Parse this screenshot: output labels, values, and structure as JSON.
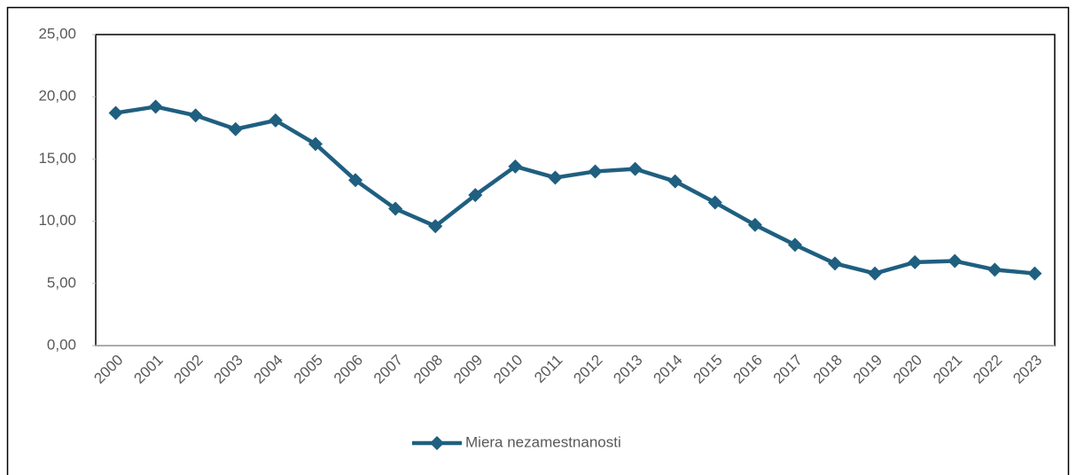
{
  "chart_data": {
    "type": "line",
    "categories": [
      "2000",
      "2001",
      "2002",
      "2003",
      "2004",
      "2005",
      "2006",
      "2007",
      "2008",
      "2009",
      "2010",
      "2011",
      "2012",
      "2013",
      "2014",
      "2015",
      "2016",
      "2017",
      "2018",
      "2019",
      "2020",
      "2021",
      "2022",
      "2023"
    ],
    "series": [
      {
        "name": "Miera nezamestnanosti",
        "color": "#1f5f80",
        "values": [
          18.7,
          19.2,
          18.5,
          17.4,
          18.1,
          16.2,
          13.3,
          11.0,
          9.6,
          12.1,
          14.4,
          13.5,
          14.0,
          14.2,
          13.2,
          11.5,
          9.7,
          8.1,
          6.6,
          5.8,
          6.7,
          6.8,
          6.1,
          5.8
        ]
      }
    ],
    "ylim": [
      0,
      25
    ],
    "yticks": [
      {
        "value": 0,
        "label": "0,00"
      },
      {
        "value": 5,
        "label": "5,00"
      },
      {
        "value": 10,
        "label": "10,00"
      },
      {
        "value": 15,
        "label": "15,00"
      },
      {
        "value": 20,
        "label": "20,00"
      },
      {
        "value": 25,
        "label": "25,00"
      }
    ],
    "legend": "bottom"
  }
}
